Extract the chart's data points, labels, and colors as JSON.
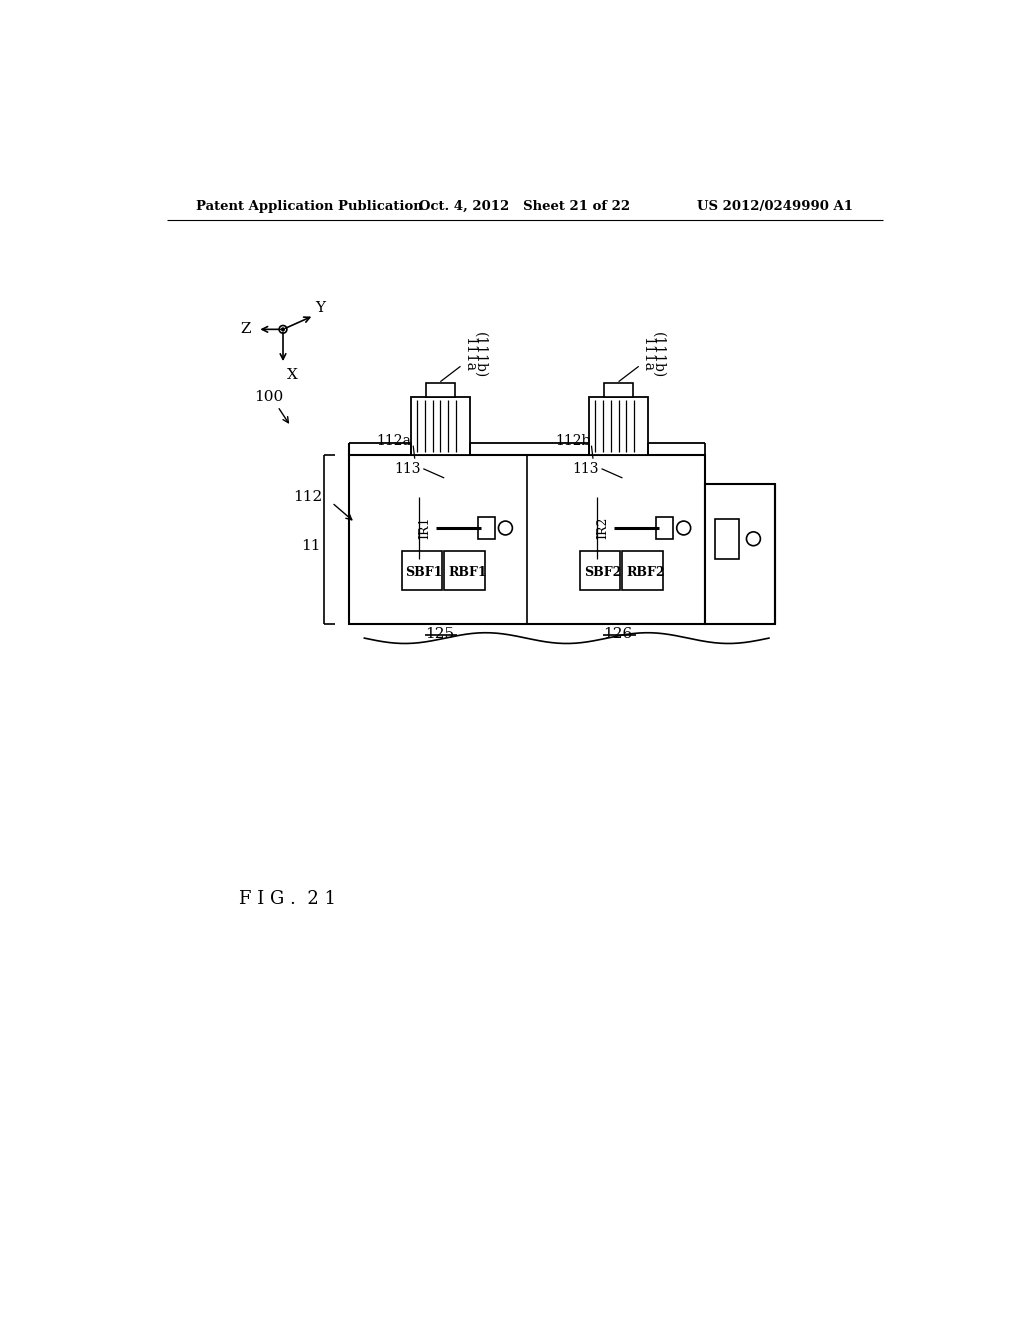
{
  "header_left": "Patent Application Publication",
  "header_mid": "Oct. 4, 2012   Sheet 21 of 22",
  "header_right": "US 2012/0249990 A1",
  "figure_label": "F I G .  2 1",
  "bg_color": "#ffffff",
  "line_color": "#000000"
}
